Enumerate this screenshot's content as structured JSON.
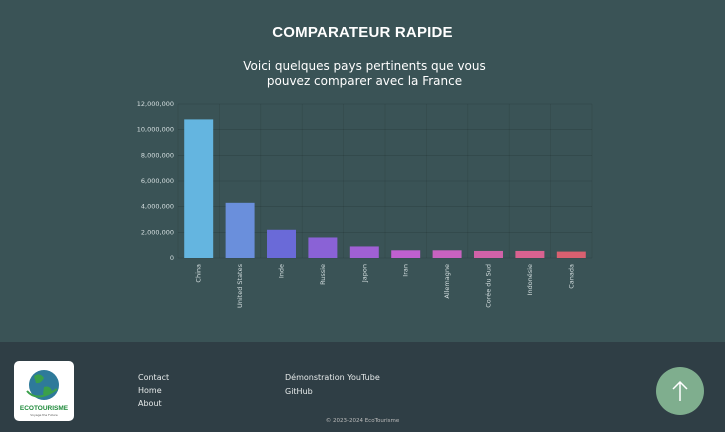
{
  "chart_data": {
    "type": "bar",
    "title": "COMPARATEUR RAPIDE",
    "subtitle": "Voici quelques pays pertinents que vous pouvez comparer avec la France",
    "categories": [
      "China",
      "United States",
      "Inde",
      "Russie",
      "Japon",
      "Iran",
      "Allemagne",
      "Corée du Sud",
      "Indonésie",
      "Canada"
    ],
    "values": [
      10800000,
      4300000,
      2200000,
      1600000,
      900000,
      600000,
      600000,
      550000,
      550000,
      500000
    ],
    "colors": [
      "#64b5e0",
      "#6a8fdc",
      "#6a6ad8",
      "#8a62d6",
      "#a060d4",
      "#c060d0",
      "#c862c0",
      "#d062a8",
      "#d86290",
      "#d86070"
    ],
    "ylim": [
      0,
      12000000
    ],
    "yticks": [
      0,
      {
        "value": 2000000,
        "label": "2,000,000"
      },
      {
        "value": 4000000,
        "label": "4,000,000"
      },
      {
        "value": 6000000,
        "label": "6,000,000"
      },
      {
        "value": 8000000,
        "label": "8,000,000"
      },
      {
        "value": 10000000,
        "label": "10,000,000"
      },
      {
        "value": 12000000,
        "label": "12,000,000"
      }
    ],
    "grid": true
  },
  "footer": {
    "logo": {
      "name": "ECOTOURISME",
      "tagline": "Voyage the Future"
    },
    "links": [
      "Contact",
      "Home",
      "About"
    ],
    "resources": [
      "Démonstration YouTube",
      "GitHub"
    ],
    "copyright": "© 2023-2024 EcoTourisme"
  }
}
